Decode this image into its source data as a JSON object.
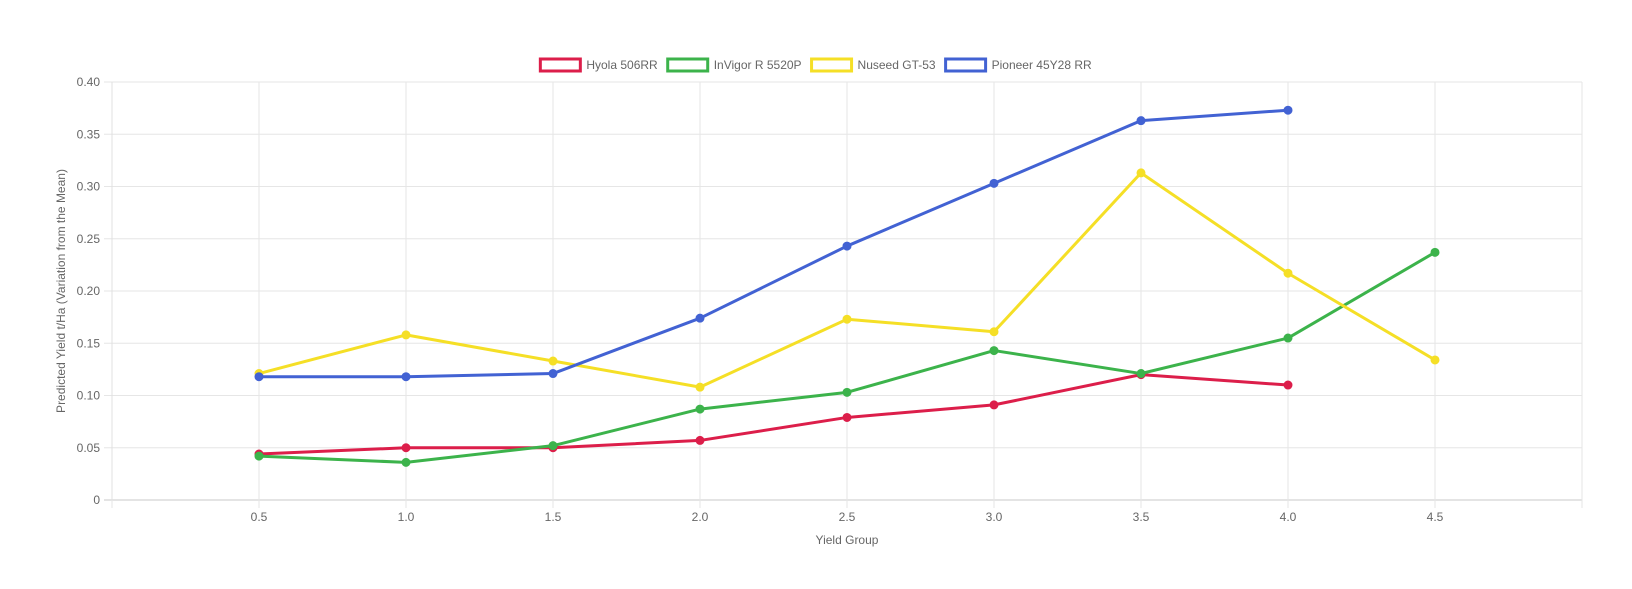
{
  "chart_data": {
    "type": "line",
    "title": "",
    "xlabel": "Yield Group",
    "ylabel": "Predicted Yield t/Ha (Variation from the Mean)",
    "x_ticks": [
      "0.5",
      "1.0",
      "1.5",
      "2.0",
      "2.5",
      "3.0",
      "3.5",
      "4.0",
      "4.5"
    ],
    "y_ticks": [
      "0",
      "0.05",
      "0.10",
      "0.15",
      "0.20",
      "0.25",
      "0.30",
      "0.35",
      "0.40"
    ],
    "xlim": [
      0,
      5
    ],
    "ylim": [
      0,
      0.4
    ],
    "grid": true,
    "legend_position": "top-center",
    "series": [
      {
        "name": "Hyola 506RR",
        "color": "#dc1e4a",
        "x": [
          0.5,
          1.0,
          1.5,
          2.0,
          2.5,
          3.0,
          3.5,
          4.0
        ],
        "values": [
          0.044,
          0.05,
          0.05,
          0.057,
          0.079,
          0.091,
          0.12,
          0.11
        ]
      },
      {
        "name": "InVigor R 5520P",
        "color": "#3cb34b",
        "x": [
          0.5,
          1.0,
          1.5,
          2.0,
          2.5,
          3.0,
          3.5,
          4.0,
          4.5
        ],
        "values": [
          0.042,
          0.036,
          0.052,
          0.087,
          0.103,
          0.143,
          0.121,
          0.155,
          0.237
        ]
      },
      {
        "name": "Nuseed GT-53",
        "color": "#f5df26",
        "x": [
          0.5,
          1.0,
          1.5,
          2.0,
          2.5,
          3.0,
          3.5,
          4.0,
          4.5
        ],
        "values": [
          0.121,
          0.158,
          0.133,
          0.108,
          0.173,
          0.161,
          0.313,
          0.217,
          0.134
        ]
      },
      {
        "name": "Pioneer 45Y28 RR",
        "color": "#4262d3",
        "x": [
          0.5,
          1.0,
          1.5,
          2.0,
          2.5,
          3.0,
          3.5,
          4.0
        ],
        "values": [
          0.118,
          0.118,
          0.121,
          0.174,
          0.243,
          0.303,
          0.363,
          0.373
        ]
      }
    ]
  }
}
